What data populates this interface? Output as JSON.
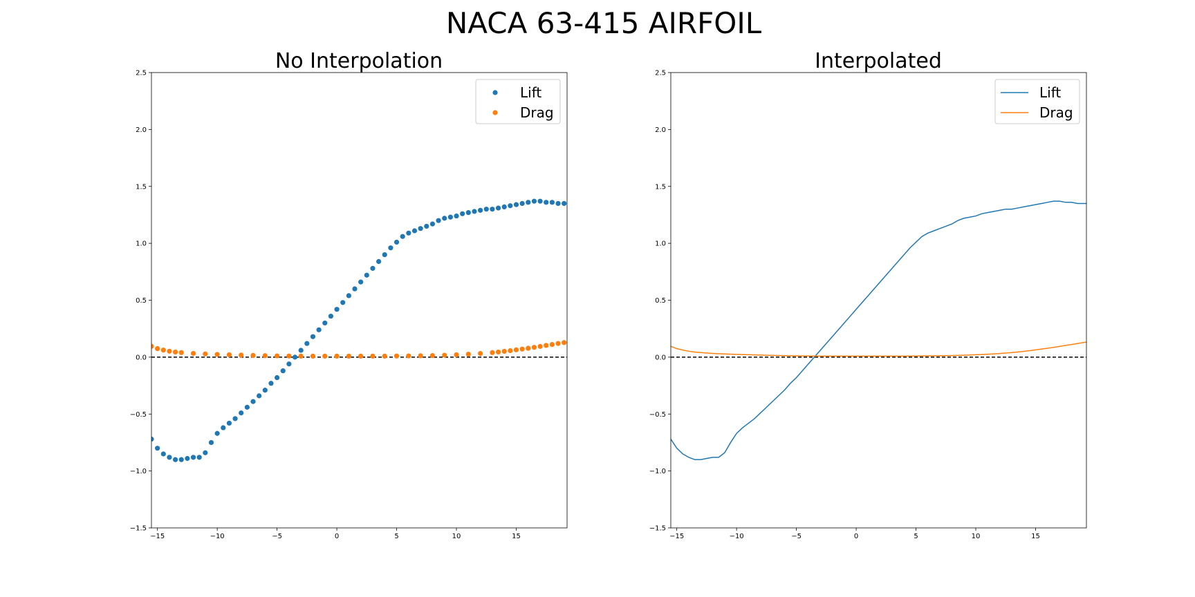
{
  "figure": {
    "title": "NACA 63-415 AIRFOIL"
  },
  "colors": {
    "lift": "#1f77b4",
    "drag": "#ff7f0e",
    "zero_line": "#000000"
  },
  "chart_data": [
    {
      "type": "scatter",
      "title": "No Interpolation",
      "xlabel": "",
      "ylabel": "",
      "xlim": [
        -15.5,
        19.25
      ],
      "ylim": [
        -1.5,
        2.5
      ],
      "xticks": [
        -15,
        -10,
        -5,
        0,
        5,
        10,
        15
      ],
      "yticks": [
        -1.5,
        -1.0,
        -0.5,
        0.0,
        0.5,
        1.0,
        1.5,
        2.0,
        2.5
      ],
      "grid": false,
      "legend": "upper-right",
      "reference_line": {
        "y": 0,
        "style": "dashed"
      },
      "series": [
        {
          "name": "Lift",
          "x": [
            -15.5,
            -15.0,
            -14.5,
            -14.0,
            -13.5,
            -13.0,
            -12.5,
            -12.0,
            -11.5,
            -11.0,
            -10.5,
            -10.0,
            -9.5,
            -9.0,
            -8.5,
            -8.0,
            -7.5,
            -7.0,
            -6.5,
            -6.0,
            -5.5,
            -5.0,
            -4.5,
            -4.0,
            -3.5,
            -3.0,
            -2.5,
            -2.0,
            -1.5,
            -1.0,
            -0.5,
            0.0,
            0.5,
            1.0,
            1.5,
            2.0,
            2.5,
            3.0,
            3.5,
            4.0,
            4.5,
            5.0,
            5.5,
            6.0,
            6.5,
            7.0,
            7.5,
            8.0,
            8.5,
            9.0,
            9.5,
            10.0,
            10.5,
            11.0,
            11.5,
            12.0,
            12.5,
            13.0,
            13.5,
            14.0,
            14.5,
            15.0,
            15.5,
            16.0,
            16.5,
            17.0,
            17.5,
            18.0,
            18.5,
            19.0
          ],
          "y": [
            -0.72,
            -0.8,
            -0.85,
            -0.88,
            -0.9,
            -0.9,
            -0.89,
            -0.88,
            -0.88,
            -0.84,
            -0.75,
            -0.67,
            -0.62,
            -0.58,
            -0.54,
            -0.49,
            -0.44,
            -0.39,
            -0.34,
            -0.29,
            -0.23,
            -0.18,
            -0.12,
            -0.06,
            0.0,
            0.06,
            0.12,
            0.18,
            0.24,
            0.3,
            0.36,
            0.42,
            0.48,
            0.54,
            0.6,
            0.66,
            0.72,
            0.78,
            0.84,
            0.9,
            0.96,
            1.01,
            1.06,
            1.09,
            1.11,
            1.13,
            1.15,
            1.17,
            1.2,
            1.22,
            1.23,
            1.24,
            1.26,
            1.27,
            1.28,
            1.29,
            1.3,
            1.3,
            1.31,
            1.32,
            1.33,
            1.34,
            1.35,
            1.36,
            1.37,
            1.37,
            1.36,
            1.36,
            1.35,
            1.35
          ]
        },
        {
          "name": "Drag",
          "x": [
            -15.5,
            -15.0,
            -14.5,
            -14.0,
            -13.5,
            -13.0,
            -12.0,
            -11.0,
            -10.0,
            -9.0,
            -8.0,
            -7.0,
            -6.0,
            -5.0,
            -4.0,
            -3.0,
            -2.0,
            -1.0,
            0.0,
            1.0,
            2.0,
            3.0,
            4.0,
            5.0,
            6.0,
            7.0,
            8.0,
            9.0,
            10.0,
            11.0,
            12.0,
            13.0,
            13.5,
            14.0,
            14.5,
            15.0,
            15.5,
            16.0,
            16.5,
            17.0,
            17.5,
            18.0,
            18.5,
            19.0
          ],
          "y": [
            0.095,
            0.075,
            0.062,
            0.052,
            0.045,
            0.04,
            0.033,
            0.028,
            0.024,
            0.021,
            0.018,
            0.015,
            0.013,
            0.011,
            0.01,
            0.009,
            0.009,
            0.009,
            0.009,
            0.009,
            0.009,
            0.009,
            0.009,
            0.01,
            0.011,
            0.012,
            0.014,
            0.017,
            0.021,
            0.026,
            0.032,
            0.04,
            0.045,
            0.051,
            0.057,
            0.064,
            0.071,
            0.078,
            0.086,
            0.094,
            0.103,
            0.111,
            0.12,
            0.128
          ]
        }
      ]
    },
    {
      "type": "line",
      "title": "Interpolated",
      "xlabel": "",
      "ylabel": "",
      "xlim": [
        -15.5,
        19.25
      ],
      "ylim": [
        -1.5,
        2.5
      ],
      "xticks": [
        -15,
        -10,
        -5,
        0,
        5,
        10,
        15
      ],
      "yticks": [
        -1.5,
        -1.0,
        -0.5,
        0.0,
        0.5,
        1.0,
        1.5,
        2.0,
        2.5
      ],
      "grid": false,
      "legend": "upper-right",
      "reference_line": {
        "y": 0,
        "style": "dashed"
      },
      "series": [
        {
          "name": "Lift",
          "x": [
            -15.5,
            -15.0,
            -14.5,
            -14.0,
            -13.5,
            -13.0,
            -12.5,
            -12.0,
            -11.5,
            -11.0,
            -10.5,
            -10.0,
            -9.5,
            -9.0,
            -8.5,
            -8.0,
            -7.5,
            -7.0,
            -6.5,
            -6.0,
            -5.5,
            -5.0,
            -4.5,
            -4.0,
            -3.5,
            -3.0,
            -2.5,
            -2.0,
            -1.5,
            -1.0,
            -0.5,
            0.0,
            0.5,
            1.0,
            1.5,
            2.0,
            2.5,
            3.0,
            3.5,
            4.0,
            4.5,
            5.0,
            5.5,
            6.0,
            6.5,
            7.0,
            7.5,
            8.0,
            8.5,
            9.0,
            9.5,
            10.0,
            10.5,
            11.0,
            11.5,
            12.0,
            12.5,
            13.0,
            13.5,
            14.0,
            14.5,
            15.0,
            15.5,
            16.0,
            16.5,
            17.0,
            17.5,
            18.0,
            18.5,
            19.0,
            19.25
          ],
          "y": [
            -0.72,
            -0.8,
            -0.85,
            -0.88,
            -0.9,
            -0.9,
            -0.89,
            -0.88,
            -0.88,
            -0.84,
            -0.75,
            -0.67,
            -0.62,
            -0.58,
            -0.54,
            -0.49,
            -0.44,
            -0.39,
            -0.34,
            -0.29,
            -0.23,
            -0.18,
            -0.12,
            -0.06,
            0.0,
            0.06,
            0.12,
            0.18,
            0.24,
            0.3,
            0.36,
            0.42,
            0.48,
            0.54,
            0.6,
            0.66,
            0.72,
            0.78,
            0.84,
            0.9,
            0.96,
            1.01,
            1.06,
            1.09,
            1.11,
            1.13,
            1.15,
            1.17,
            1.2,
            1.22,
            1.23,
            1.24,
            1.26,
            1.27,
            1.28,
            1.29,
            1.3,
            1.3,
            1.31,
            1.32,
            1.33,
            1.34,
            1.35,
            1.36,
            1.37,
            1.37,
            1.36,
            1.36,
            1.35,
            1.35,
            1.35
          ]
        },
        {
          "name": "Drag",
          "x": [
            -15.5,
            -15.0,
            -14.5,
            -14.0,
            -13.5,
            -13.0,
            -12.0,
            -11.0,
            -10.0,
            -9.0,
            -8.0,
            -7.0,
            -6.0,
            -5.0,
            -4.0,
            -3.0,
            -2.0,
            -1.0,
            0.0,
            1.0,
            2.0,
            3.0,
            4.0,
            5.0,
            6.0,
            7.0,
            8.0,
            9.0,
            10.0,
            11.0,
            12.0,
            13.0,
            13.5,
            14.0,
            14.5,
            15.0,
            15.5,
            16.0,
            16.5,
            17.0,
            17.5,
            18.0,
            18.5,
            19.0,
            19.25
          ],
          "y": [
            0.095,
            0.075,
            0.062,
            0.052,
            0.045,
            0.04,
            0.033,
            0.028,
            0.024,
            0.021,
            0.018,
            0.015,
            0.013,
            0.011,
            0.01,
            0.009,
            0.009,
            0.009,
            0.009,
            0.009,
            0.009,
            0.009,
            0.009,
            0.01,
            0.011,
            0.012,
            0.014,
            0.017,
            0.021,
            0.026,
            0.032,
            0.04,
            0.045,
            0.051,
            0.057,
            0.064,
            0.071,
            0.078,
            0.086,
            0.094,
            0.103,
            0.111,
            0.12,
            0.128,
            0.132
          ]
        }
      ]
    }
  ]
}
